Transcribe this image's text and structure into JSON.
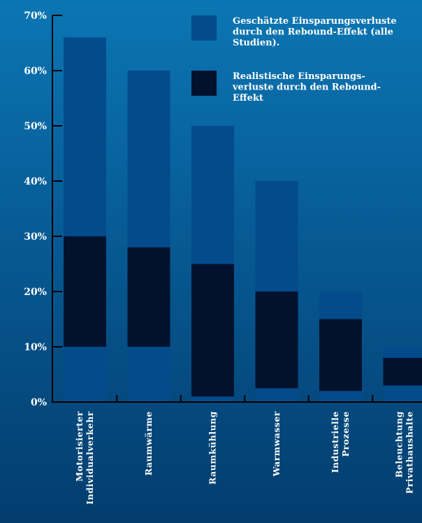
{
  "chart_data": {
    "type": "bar",
    "stacked_overlay": true,
    "categories": [
      [
        "Motorisierter",
        "Individualverkehr"
      ],
      [
        "Raumwärme"
      ],
      [
        "Raumkühlung"
      ],
      [
        "Warmwasser"
      ],
      [
        "Industrielle",
        "Prozesse"
      ],
      [
        "Beleuchtung",
        "Privathaushalte"
      ]
    ],
    "series": [
      {
        "name": [
          "Geschätzte Einsparungsverluste",
          "durch den Rebound-Effekt (alle",
          "Studien)."
        ],
        "color": "#034b8a",
        "ranges": [
          [
            0,
            66
          ],
          [
            0,
            60
          ],
          [
            0,
            50
          ],
          [
            0,
            40
          ],
          [
            0,
            20
          ],
          [
            0,
            10
          ]
        ]
      },
      {
        "name": [
          "Realistische Einsparungs-",
          "verluste durch den Rebound-",
          "Effekt"
        ],
        "color": "#02122e",
        "ranges": [
          [
            10,
            30
          ],
          [
            10,
            28
          ],
          [
            1,
            25
          ],
          [
            2.5,
            20
          ],
          [
            2,
            15
          ],
          [
            3,
            8
          ]
        ]
      }
    ],
    "yticks": [
      "0%",
      "10%",
      "20%",
      "30%",
      "40%",
      "50%",
      "60%",
      "70%"
    ],
    "ylim": [
      0,
      70
    ],
    "grid": false,
    "legend_position": "top-right"
  }
}
